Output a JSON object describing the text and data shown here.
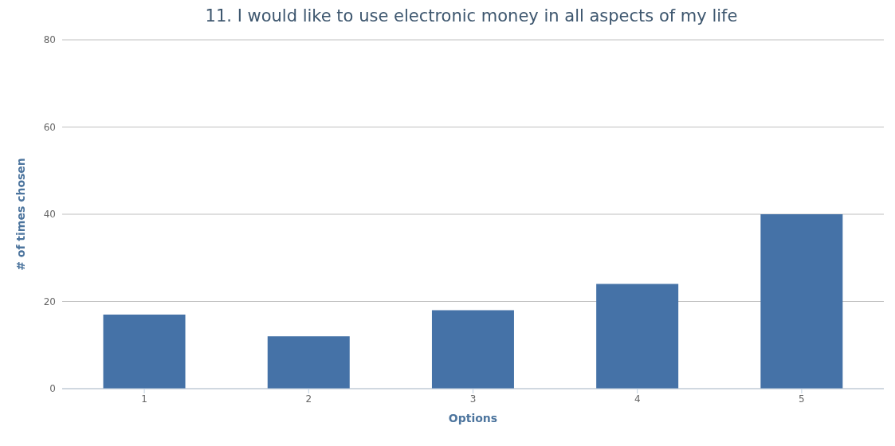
{
  "chart_data": {
    "type": "bar",
    "title": "11. I would like to use electronic money in all aspects of my life",
    "xlabel": "Options",
    "ylabel": "# of times chosen",
    "categories": [
      "1",
      "2",
      "3",
      "4",
      "5"
    ],
    "values": [
      17,
      12,
      18,
      24,
      40
    ],
    "color": "#4572a7",
    "ylim": [
      0,
      80
    ],
    "yticks": [
      0,
      20,
      40,
      60,
      80
    ],
    "grid": "y"
  }
}
